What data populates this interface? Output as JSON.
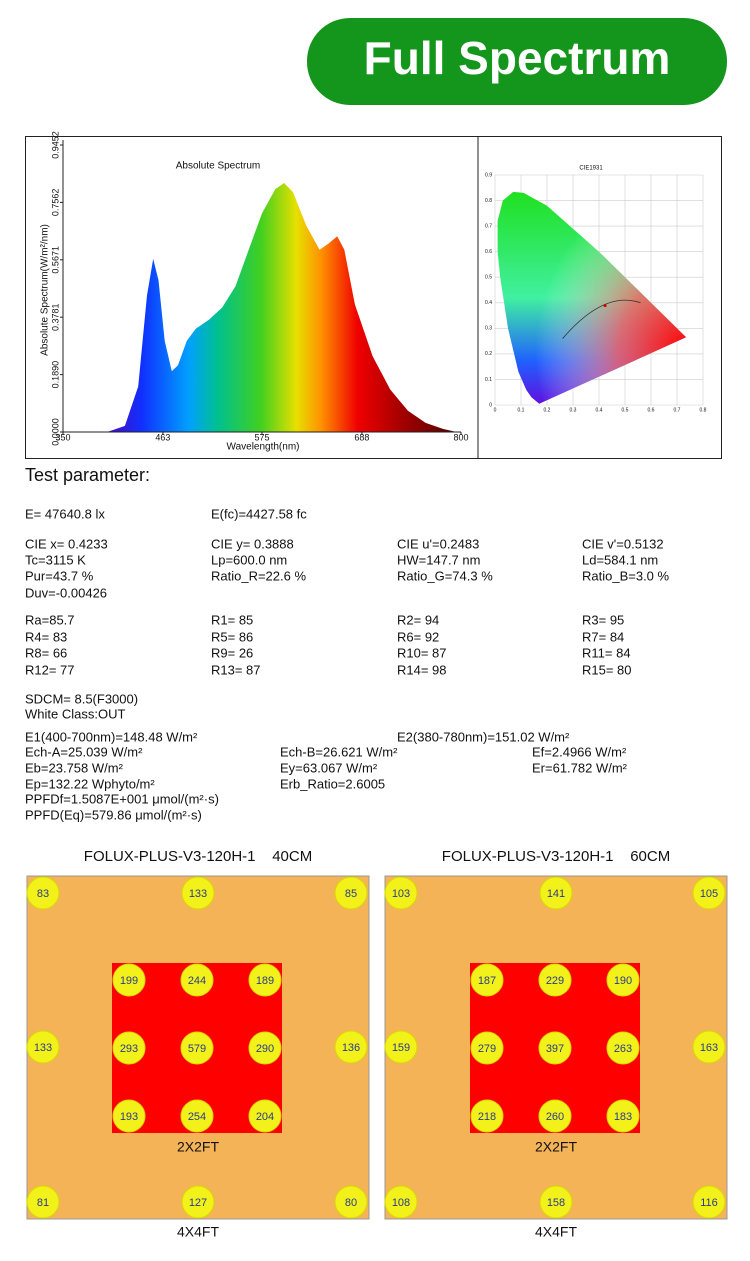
{
  "header": {
    "title": "Full Spectrum"
  },
  "spectrum": {
    "title": "Absolute Spectrum",
    "xlabel": "Wavelength(nm)",
    "ylabel": "Absolute Spectrum(W/m²/nm)",
    "xlim": [
      350,
      800
    ],
    "xticks": [
      350,
      463,
      575,
      688,
      800
    ],
    "ylim": [
      0,
      0.9452
    ],
    "yticks": [
      {
        "value": 0,
        "label": "0.0000"
      },
      {
        "value": 0.189,
        "label": "0.1890"
      },
      0.3781,
      0.5671,
      0.7562,
      0.9452
    ],
    "x": [
      400,
      420,
      435,
      445,
      452,
      458,
      465,
      473,
      480,
      490,
      500,
      515,
      530,
      545,
      560,
      575,
      590,
      600,
      610,
      625,
      640,
      650,
      660,
      668,
      680,
      700,
      720,
      740,
      760,
      780,
      795
    ],
    "values": [
      0,
      0.02,
      0.15,
      0.45,
      0.57,
      0.5,
      0.3,
      0.2,
      0.22,
      0.3,
      0.34,
      0.37,
      0.41,
      0.48,
      0.6,
      0.72,
      0.8,
      0.82,
      0.79,
      0.68,
      0.6,
      0.62,
      0.645,
      0.6,
      0.42,
      0.25,
      0.14,
      0.07,
      0.03,
      0.01,
      0
    ]
  },
  "cie": {
    "title": "CIE1931",
    "xlim": [
      0,
      0.8
    ],
    "ylim": [
      0,
      0.9
    ],
    "xticks": [
      0,
      0.1,
      0.2,
      0.3,
      0.4,
      0.5,
      0.6,
      0.7,
      0.8
    ],
    "yticks": [
      0,
      0.1,
      0.2,
      0.3,
      0.4,
      0.5,
      0.6,
      0.7,
      0.8,
      0.9
    ],
    "point": [
      0.4233,
      0.3888
    ]
  },
  "parameters": {
    "title": "Test parameter:",
    "blocks": [
      [
        [
          "E=  47640.8 lx",
          "E(fc)=4427.58 fc"
        ]
      ],
      [
        [
          "CIE x= 0.4233",
          "CIE y= 0.3888",
          "CIE u'=0.2483",
          "CIE v'=0.5132"
        ],
        [
          "Tc=3115 K",
          "Lp=600.0 nm",
          "HW=147.7 nm",
          "Ld=584.1 nm"
        ],
        [
          "Pur=43.7 %",
          "Ratio_R=22.6 %",
          "Ratio_G=74.3 %",
          "Ratio_B=3.0 %"
        ],
        [
          "Duv=-0.00426"
        ]
      ],
      [
        [
          "Ra=85.7",
          "R1= 85",
          "R2= 94",
          "R3= 95"
        ],
        [
          "R4= 83",
          "R5= 86",
          "R6= 92",
          "R7= 84"
        ],
        [
          "R8= 66",
          "R9= 26",
          "R10= 87",
          "R11= 84"
        ],
        [
          "R12= 77",
          "R13= 87",
          "R14= 98",
          "R15= 80"
        ]
      ],
      [
        [
          "SDCM= 8.5(F3000)"
        ],
        [
          "White Class:OUT"
        ]
      ],
      [
        [
          "E1(400-700nm)=148.48 W/m²",
          "E2(380-780nm)=151.02 W/m²"
        ],
        [
          "Ech-A=25.039 W/m²",
          "Ech-B=26.621 W/m²",
          "Ef=2.4966 W/m²"
        ],
        [
          "Eb=23.758 W/m²",
          "Ey=63.067 W/m²",
          "Er=61.782 W/m²"
        ],
        [
          "Ep=132.22 Wphyto/m²",
          "Erb_Ratio=2.6005"
        ],
        [
          "PPFDf=1.5087E+001 μmol/(m²·s)"
        ],
        [
          "PPFD(Eq)=579.86 μmol/(m²·s)"
        ]
      ]
    ]
  },
  "maps": [
    {
      "title": "FOLUX-PLUS-V3-120H-1    40CM",
      "inner_label": "2X2FT",
      "outer_label": "4X4FT",
      "outer": [
        [
          83,
          133,
          85
        ],
        [
          133,
          136
        ],
        [
          81,
          127,
          80
        ]
      ],
      "inner": [
        [
          199,
          244,
          189
        ],
        [
          293,
          579,
          290
        ],
        [
          193,
          254,
          204
        ]
      ]
    },
    {
      "title": "FOLUX-PLUS-V3-120H-1    60CM",
      "inner_label": "2X2FT",
      "outer_label": "4X4FT",
      "outer": [
        [
          103,
          141,
          105
        ],
        [
          159,
          163
        ],
        [
          108,
          158,
          116
        ]
      ],
      "inner": [
        [
          187,
          229,
          190
        ],
        [
          279,
          397,
          263
        ],
        [
          218,
          260,
          183
        ]
      ]
    }
  ]
}
